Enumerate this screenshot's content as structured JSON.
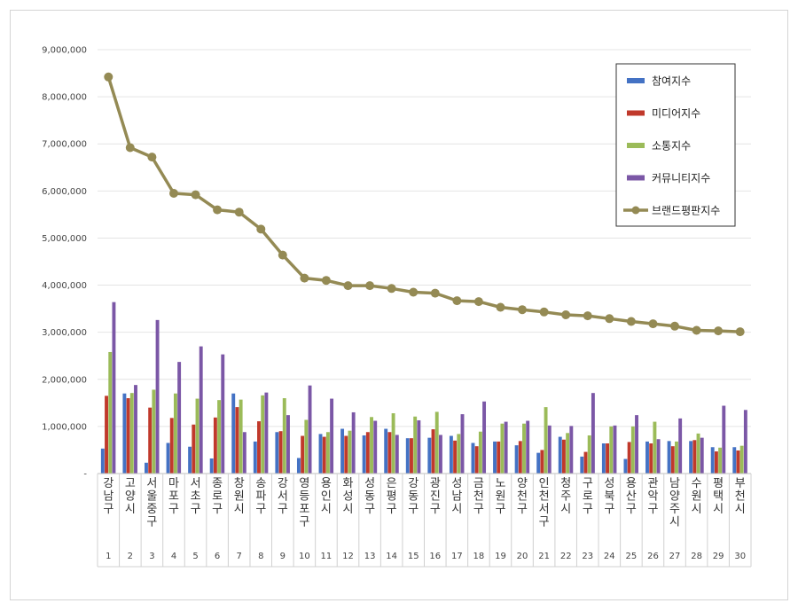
{
  "chart_data": {
    "type": "bar",
    "title": "",
    "xlabel": "",
    "ylabel": "",
    "ylim": [
      0,
      9000000
    ],
    "yticks": [
      "-",
      "1,000,000",
      "2,000,000",
      "3,000,000",
      "4,000,000",
      "5,000,000",
      "6,000,000",
      "7,000,000",
      "8,000,000",
      "9,000,000"
    ],
    "ytick_values": [
      0,
      1000000,
      2000000,
      3000000,
      4000000,
      5000000,
      6000000,
      7000000,
      8000000,
      9000000
    ],
    "categories": [
      "강남구",
      "고양시",
      "서울 중구",
      "마포구",
      "서초구",
      "종로구",
      "창원시",
      "송파구",
      "강서구",
      "영등포구",
      "용인시",
      "화성시",
      "성동구",
      "은평구",
      "강동구",
      "광진구",
      "성남시",
      "금천구",
      "노원구",
      "양천구",
      "인천 서구",
      "청주시",
      "구로구",
      "성북구",
      "용산구",
      "관악구",
      "남양주시",
      "수원시",
      "평택시",
      "부천시"
    ],
    "ranks": [
      "1",
      "2",
      "3",
      "4",
      "5",
      "6",
      "7",
      "8",
      "9",
      "10",
      "11",
      "12",
      "13",
      "14",
      "15",
      "16",
      "17",
      "18",
      "19",
      "20",
      "21",
      "22",
      "23",
      "24",
      "25",
      "26",
      "27",
      "28",
      "29",
      "30"
    ],
    "grid": true,
    "legend_position": "top-right",
    "series": [
      {
        "name": "참여지수",
        "type": "bar",
        "color": "#4472c4",
        "values": [
          530000,
          1700000,
          230000,
          650000,
          570000,
          320000,
          1700000,
          680000,
          880000,
          330000,
          840000,
          950000,
          810000,
          950000,
          750000,
          760000,
          800000,
          650000,
          680000,
          600000,
          440000,
          780000,
          360000,
          640000,
          310000,
          680000,
          690000,
          690000,
          560000,
          560000
        ]
      },
      {
        "name": "미디어지수",
        "type": "bar",
        "color": "#c0392b",
        "values": [
          1650000,
          1600000,
          1400000,
          1180000,
          1040000,
          1190000,
          1410000,
          1110000,
          900000,
          800000,
          780000,
          800000,
          880000,
          880000,
          750000,
          940000,
          700000,
          580000,
          680000,
          690000,
          500000,
          720000,
          460000,
          640000,
          670000,
          640000,
          580000,
          710000,
          470000,
          490000
        ]
      },
      {
        "name": "소통지수",
        "type": "bar",
        "color": "#9bbb59",
        "values": [
          2580000,
          1710000,
          1780000,
          1700000,
          1590000,
          1560000,
          1570000,
          1660000,
          1600000,
          1140000,
          880000,
          910000,
          1200000,
          1280000,
          1210000,
          1310000,
          840000,
          890000,
          1060000,
          1060000,
          1410000,
          860000,
          810000,
          1000000,
          1000000,
          1100000,
          680000,
          850000,
          550000,
          590000
        ]
      },
      {
        "name": "커뮤니티지수",
        "type": "bar",
        "color": "#7b57a6",
        "values": [
          3640000,
          1880000,
          3260000,
          2370000,
          2700000,
          2530000,
          880000,
          1720000,
          1240000,
          1870000,
          1590000,
          1300000,
          1120000,
          820000,
          1130000,
          820000,
          1260000,
          1530000,
          1100000,
          1120000,
          1020000,
          1010000,
          1710000,
          1020000,
          1240000,
          730000,
          1170000,
          760000,
          1440000,
          1350000
        ]
      },
      {
        "name": "브랜드평판지수",
        "type": "line",
        "color": "#948a54",
        "values": [
          8420000,
          6920000,
          6720000,
          5950000,
          5920000,
          5600000,
          5550000,
          5190000,
          4640000,
          4150000,
          4100000,
          3990000,
          3990000,
          3930000,
          3850000,
          3830000,
          3670000,
          3650000,
          3530000,
          3480000,
          3430000,
          3370000,
          3350000,
          3290000,
          3230000,
          3180000,
          3130000,
          3040000,
          3030000,
          3010000
        ]
      }
    ]
  }
}
